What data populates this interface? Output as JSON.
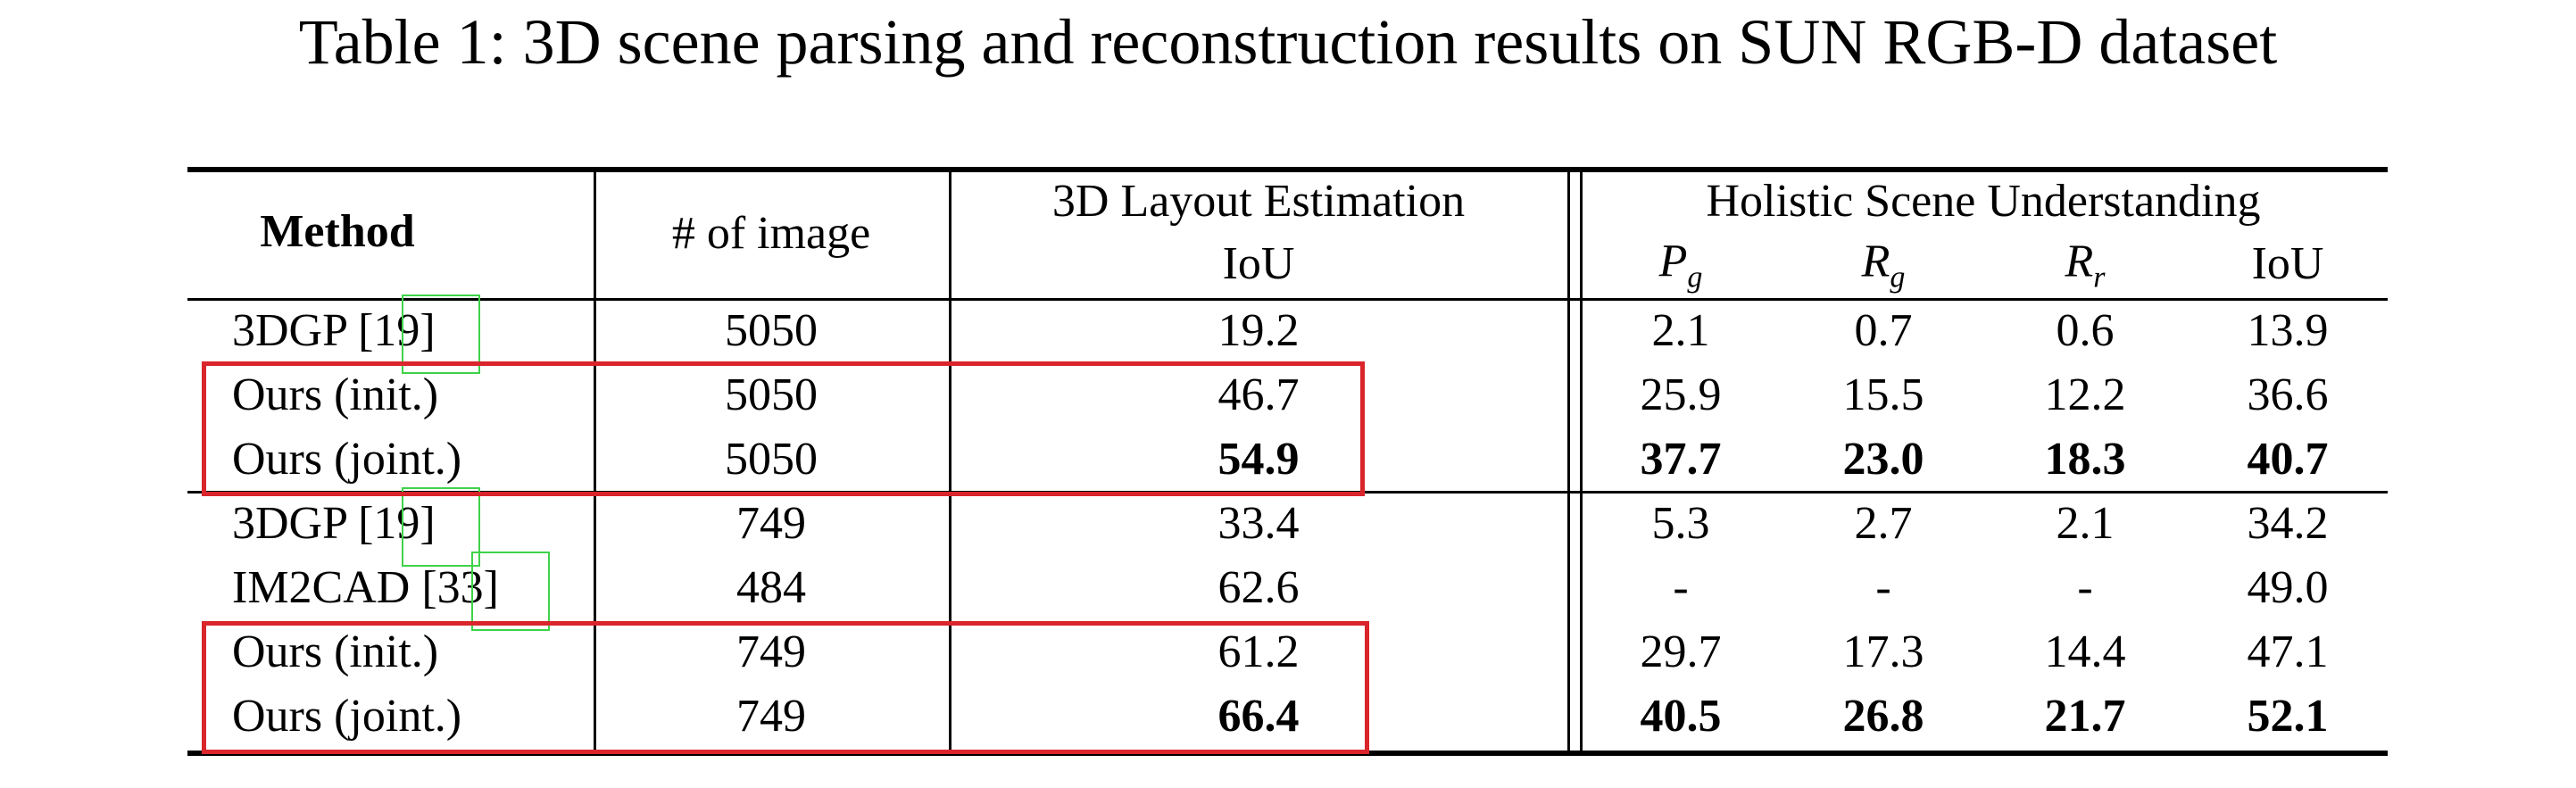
{
  "caption": "Table 1: 3D scene parsing and reconstruction results on SUN RGB-D dataset",
  "header": {
    "method": "Method",
    "num_images": "# of image",
    "layout_group": "3D Layout Estimation",
    "layout_iou": "IoU",
    "holistic_group": "Holistic Scene Understanding",
    "pg_letter": "P",
    "pg_sub": "g",
    "rg_letter": "R",
    "rg_sub": "g",
    "rr_letter": "R",
    "rr_sub": "r",
    "holistic_iou": "IoU"
  },
  "rows": [
    {
      "method": "3DGP",
      "cite": "[19]",
      "images": "5050",
      "layout": "19.2",
      "pg": "2.1",
      "rg": "0.7",
      "rr": "0.6",
      "iou": "13.9"
    },
    {
      "method": "Ours (init.)",
      "images": "5050",
      "layout": "46.7",
      "pg": "25.9",
      "rg": "15.5",
      "rr": "12.2",
      "iou": "36.6"
    },
    {
      "method": "Ours (joint.)",
      "images": "5050",
      "layout": "54.9",
      "pg": "37.7",
      "rg": "23.0",
      "rr": "18.3",
      "iou": "40.7"
    },
    {
      "method": "3DGP",
      "cite": "[19]",
      "images": "749",
      "layout": "33.4",
      "pg": "5.3",
      "rg": "2.7",
      "rr": "2.1",
      "iou": "34.2"
    },
    {
      "method": "IM2CAD",
      "cite": "[33]",
      "images": "484",
      "layout": "62.6",
      "pg": "-",
      "rg": "-",
      "rr": "-",
      "iou": "49.0"
    },
    {
      "method": "Ours (init.)",
      "images": "749",
      "layout": "61.2",
      "pg": "29.7",
      "rg": "17.3",
      "rr": "14.4",
      "iou": "47.1"
    },
    {
      "method": "Ours (joint.)",
      "images": "749",
      "layout": "66.4",
      "pg": "40.5",
      "rg": "26.8",
      "rr": "21.7",
      "iou": "52.1"
    }
  ],
  "colors": {
    "annotation_box": "#d9252b",
    "citation_box": "#3fd24a"
  }
}
